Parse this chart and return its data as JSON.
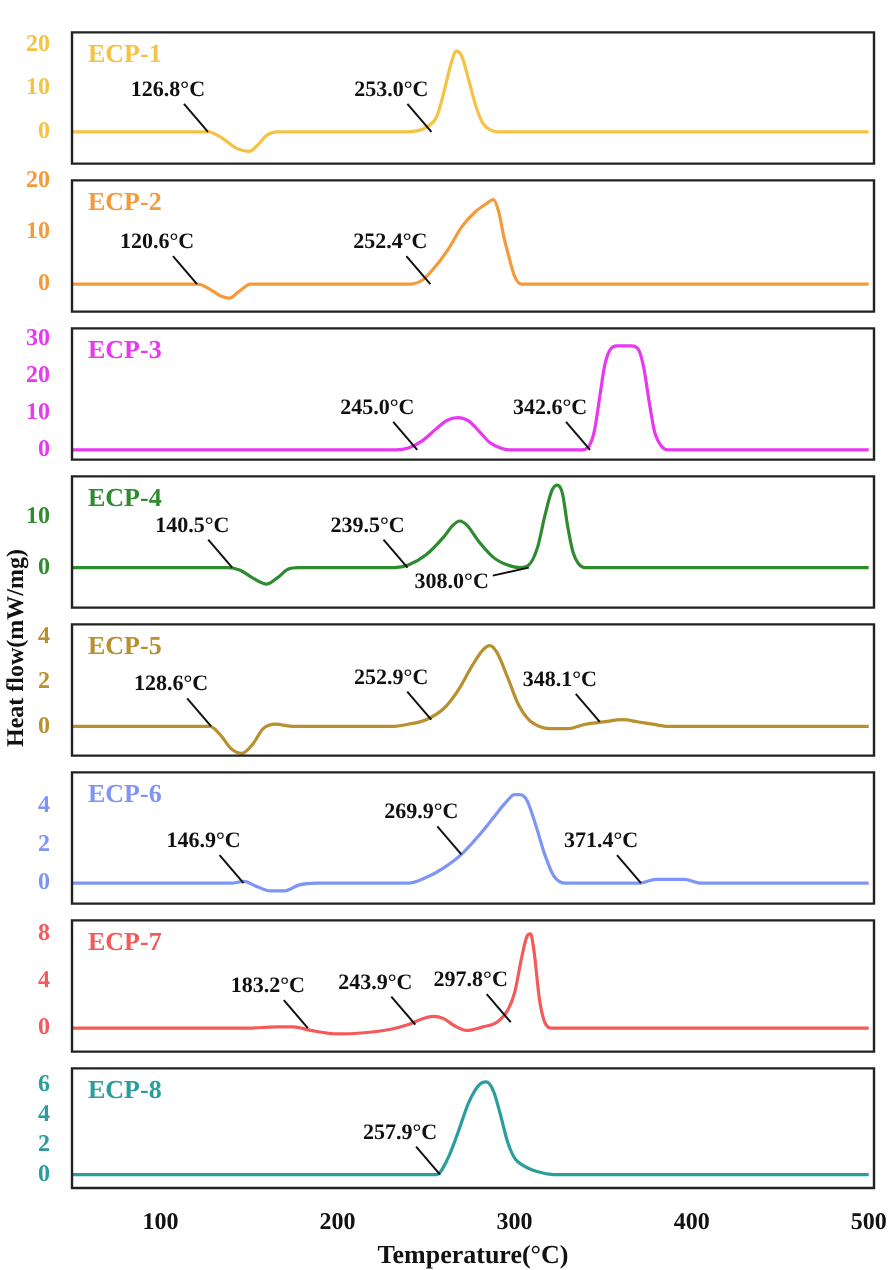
{
  "chart_data": [
    {
      "type": "line",
      "x": [
        50,
        120,
        127,
        135,
        143,
        150,
        155,
        160,
        166,
        240,
        250,
        256,
        260,
        264,
        267,
        270,
        274,
        278,
        282,
        286,
        290,
        500
      ],
      "series": [
        {
          "name": "ECP-1",
          "color": "#f5c242",
          "values": [
            0,
            0,
            0,
            -1.5,
            -3.8,
            -4.5,
            -3,
            -0.8,
            0,
            0,
            1,
            3.5,
            9,
            15.5,
            18.5,
            17.5,
            12,
            6,
            2,
            0.5,
            0,
            0
          ]
        }
      ],
      "xlim": [
        50,
        503
      ],
      "ylim": [
        -7.3,
        22.8
      ],
      "yticks": [
        0,
        10,
        20
      ],
      "tick_labels": "y",
      "annotations": [
        {
          "text": "126.8°C",
          "x": 126.8,
          "y": 0
        },
        {
          "text": "253.0°C",
          "x": 253.0,
          "y": 0
        }
      ]
    },
    {
      "type": "line",
      "x": [
        50,
        115,
        121,
        128,
        134,
        139,
        144,
        151,
        240,
        248,
        256,
        263,
        270,
        278,
        284,
        288,
        291,
        294,
        297,
        300,
        304,
        500
      ],
      "series": [
        {
          "name": "ECP-2",
          "color": "#f59a3a",
          "values": [
            0,
            0,
            0,
            -1,
            -2.3,
            -2.7,
            -1.5,
            0,
            0,
            0.8,
            3.7,
            7,
            11,
            14,
            15.5,
            16.3,
            14,
            9,
            5,
            1.5,
            0,
            0
          ]
        }
      ],
      "xlim": [
        50,
        503
      ],
      "ylim": [
        -5.3,
        20
      ],
      "yticks": [
        0,
        10,
        20
      ],
      "tick_labels": "y",
      "annotations": [
        {
          "text": "120.6°C",
          "x": 120.6,
          "y": 0
        },
        {
          "text": "252.4°C",
          "x": 252.4,
          "y": 0
        }
      ]
    },
    {
      "type": "line",
      "x": [
        50,
        233,
        240,
        248,
        256,
        262,
        268,
        274,
        280,
        286,
        292,
        297,
        338,
        342,
        345,
        348,
        351,
        354,
        358,
        366,
        370,
        373,
        376,
        379,
        383,
        387,
        500
      ],
      "series": [
        {
          "name": "ECP-3",
          "color": "#e838f0",
          "values": [
            0,
            0,
            0.5,
            2.5,
            5.8,
            8,
            8.7,
            7.8,
            5,
            2,
            0.5,
            0,
            0,
            1,
            5,
            14,
            23,
            27,
            28,
            28,
            27,
            22,
            13,
            5,
            1,
            0,
            0
          ]
        }
      ],
      "xlim": [
        50,
        503
      ],
      "ylim": [
        -2.6,
        32.7
      ],
      "yticks": [
        0,
        10,
        20,
        30
      ],
      "tick_labels": "y",
      "annotations": [
        {
          "text": "245.0°C",
          "x": 245.0,
          "y": 0
        },
        {
          "text": "342.6°C",
          "x": 342.6,
          "y": 0
        }
      ]
    },
    {
      "type": "line",
      "x": [
        50,
        138,
        145,
        152,
        160,
        166,
        172,
        178,
        232,
        240,
        250,
        260,
        265,
        269,
        273,
        280,
        288,
        296,
        303,
        308,
        313,
        317,
        321,
        324,
        327,
        330,
        333,
        336,
        340,
        500
      ],
      "series": [
        {
          "name": "ECP-4",
          "color": "#2e8b2e",
          "values": [
            0,
            0,
            -0.5,
            -2,
            -3.2,
            -2,
            -0.3,
            0,
            0,
            0.5,
            2.5,
            6,
            8.2,
            9.1,
            8.3,
            5,
            2,
            0.5,
            0,
            0.5,
            4,
            10,
            15,
            16.1,
            14.5,
            8,
            3,
            0.8,
            0,
            0
          ]
        }
      ],
      "xlim": [
        50,
        503
      ],
      "ylim": [
        -7.8,
        17.8
      ],
      "yticks": [
        0,
        10
      ],
      "tick_labels": "y",
      "annotations": [
        {
          "text": "140.5°C",
          "x": 140.5,
          "y": 0
        },
        {
          "text": "239.5°C",
          "x": 239.5,
          "y": 0
        },
        {
          "text": "308.0°C",
          "x": 308.0,
          "y": 0
        }
      ]
    },
    {
      "type": "line",
      "ylabel": "Heat flow(mW/mg)",
      "x": [
        50,
        120,
        128,
        134,
        140,
        146,
        152,
        158,
        165,
        175,
        230,
        240,
        250,
        260,
        268,
        276,
        282,
        286,
        290,
        296,
        302,
        308,
        314,
        320,
        330,
        340,
        350,
        361,
        370,
        378,
        387,
        500
      ],
      "series": [
        {
          "name": "ECP-5",
          "color": "#b8902e",
          "values": [
            0,
            0,
            0,
            -0.4,
            -1,
            -1.2,
            -0.8,
            -0.1,
            0.1,
            0,
            0,
            0.1,
            0.3,
            0.8,
            1.6,
            2.7,
            3.4,
            3.6,
            3.3,
            2.2,
            1,
            0.3,
            0,
            -0.1,
            -0.1,
            0.1,
            0.2,
            0.3,
            0.2,
            0.1,
            0,
            0
          ]
        }
      ],
      "xlim": [
        50,
        503
      ],
      "ylim": [
        -1.3,
        4.55
      ],
      "yticks": [
        0,
        2,
        4
      ],
      "tick_labels": "y",
      "annotations": [
        {
          "text": "128.6°C",
          "x": 128.6,
          "y": 0
        },
        {
          "text": "252.9°C",
          "x": 252.9,
          "y": 0.3
        },
        {
          "text": "348.1°C",
          "x": 348.1,
          "y": 0.2
        }
      ]
    },
    {
      "type": "line",
      "x": [
        50,
        140,
        147,
        155,
        162,
        170,
        178,
        188,
        240,
        250,
        260,
        270,
        280,
        288,
        295,
        300,
        303,
        307,
        312,
        317,
        322,
        329,
        370,
        380,
        388,
        396,
        405,
        500
      ],
      "series": [
        {
          "name": "ECP-6",
          "color": "#7f95f5",
          "values": [
            0,
            0,
            0.1,
            -0.2,
            -0.4,
            -0.4,
            -0.1,
            0,
            0,
            0.3,
            0.8,
            1.5,
            2.5,
            3.4,
            4.2,
            4.6,
            4.6,
            4.3,
            3,
            1.5,
            0.4,
            0,
            0,
            0.2,
            0.2,
            0.2,
            0,
            0
          ]
        }
      ],
      "xlim": [
        50,
        503
      ],
      "ylim": [
        -1.06,
        5.76
      ],
      "yticks": [
        0,
        2,
        4
      ],
      "tick_labels": "y",
      "annotations": [
        {
          "text": "146.9°C",
          "x": 146.9,
          "y": 0
        },
        {
          "text": "269.9°C",
          "x": 269.9,
          "y": 1.5
        },
        {
          "text": "371.4°C",
          "x": 371.4,
          "y": 0
        }
      ]
    },
    {
      "type": "line",
      "x": [
        50,
        150,
        165,
        175,
        185,
        200,
        215,
        230,
        240,
        248,
        254,
        260,
        266,
        273,
        282,
        290,
        296,
        300,
        304,
        307,
        309,
        311,
        314,
        317,
        321,
        500
      ],
      "series": [
        {
          "name": "ECP-7",
          "color": "#f55a5a",
          "values": [
            0,
            0,
            0.1,
            0.1,
            -0.2,
            -0.5,
            -0.4,
            -0.1,
            0.3,
            0.8,
            1.0,
            0.8,
            0.2,
            -0.2,
            0.1,
            0.5,
            1.5,
            3,
            6,
            7.8,
            8,
            6.5,
            2.5,
            0.5,
            0,
            0
          ]
        }
      ],
      "xlim": [
        50,
        503
      ],
      "ylim": [
        -2.0,
        9.15
      ],
      "yticks": [
        0,
        4,
        8
      ],
      "tick_labels": "y",
      "annotations": [
        {
          "text": "183.2°C",
          "x": 183.2,
          "y": 0
        },
        {
          "text": "243.9°C",
          "x": 243.9,
          "y": 0.3
        },
        {
          "text": "297.8°C",
          "x": 297.8,
          "y": 0.5
        }
      ]
    },
    {
      "type": "line",
      "xlabel": "Temperature(°C)",
      "x": [
        50,
        256,
        262,
        268,
        274,
        280,
        284,
        288,
        292,
        296,
        300,
        305,
        310,
        316,
        322,
        500
      ],
      "series": [
        {
          "name": "ECP-8",
          "color": "#2a9d9d",
          "values": [
            0,
            0,
            1,
            2.8,
            4.8,
            6,
            6.2,
            5.6,
            4,
            2.2,
            1.1,
            0.6,
            0.3,
            0.1,
            0,
            0
          ]
        }
      ],
      "xlim": [
        50,
        503
      ],
      "xticks": [
        100,
        200,
        300,
        400,
        500
      ],
      "ylim": [
        -0.9,
        7.1
      ],
      "yticks": [
        0,
        2,
        4,
        6
      ],
      "annotations": [
        {
          "text": "257.9°C",
          "x": 257.9,
          "y": 0
        }
      ]
    }
  ]
}
